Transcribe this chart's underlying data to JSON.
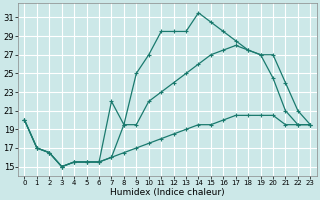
{
  "xlabel": "Humidex (Indice chaleur)",
  "background_color": "#cce8e8",
  "grid_color": "#ffffff",
  "line_color": "#1a7a6e",
  "xlim": [
    -0.5,
    23.5
  ],
  "ylim": [
    14,
    32.5
  ],
  "yticks": [
    15,
    17,
    19,
    21,
    23,
    25,
    27,
    29,
    31
  ],
  "xticks": [
    0,
    1,
    2,
    3,
    4,
    5,
    6,
    7,
    8,
    9,
    10,
    11,
    12,
    13,
    14,
    15,
    16,
    17,
    18,
    19,
    20,
    21,
    22,
    23
  ],
  "line_a_x": [
    0,
    1,
    2,
    3,
    4,
    5,
    6,
    7,
    8,
    9,
    10,
    11,
    12,
    13,
    14,
    15,
    16,
    17,
    18,
    19,
    20,
    21,
    22,
    23
  ],
  "line_a_y": [
    20.0,
    17.0,
    16.5,
    15.0,
    15.5,
    15.5,
    15.5,
    16.0,
    16.5,
    17.0,
    17.5,
    18.0,
    18.5,
    19.0,
    19.5,
    19.5,
    20.0,
    20.5,
    20.5,
    20.5,
    20.5,
    19.5,
    19.5,
    19.5
  ],
  "line_b_x": [
    0,
    1,
    2,
    3,
    4,
    5,
    6,
    7,
    8,
    9,
    10,
    11,
    12,
    13,
    14,
    15,
    16,
    17,
    18,
    19,
    20,
    21,
    22,
    23
  ],
  "line_b_y": [
    20.0,
    17.0,
    16.5,
    15.0,
    15.5,
    15.5,
    15.5,
    22.0,
    19.5,
    25.0,
    27.0,
    29.5,
    29.5,
    29.5,
    31.5,
    30.5,
    29.5,
    28.5,
    27.5,
    27.0,
    24.5,
    21.0,
    19.5,
    19.5
  ],
  "line_c_x": [
    0,
    1,
    2,
    3,
    4,
    5,
    6,
    7,
    8,
    9,
    10,
    11,
    12,
    13,
    14,
    15,
    16,
    17,
    18,
    19,
    20,
    21,
    22,
    23
  ],
  "line_c_y": [
    20.0,
    17.0,
    16.5,
    15.0,
    15.5,
    15.5,
    15.5,
    16.0,
    19.5,
    19.5,
    22.0,
    23.0,
    24.0,
    25.0,
    26.0,
    27.0,
    27.5,
    28.0,
    27.5,
    27.0,
    27.0,
    24.0,
    21.0,
    19.5
  ]
}
